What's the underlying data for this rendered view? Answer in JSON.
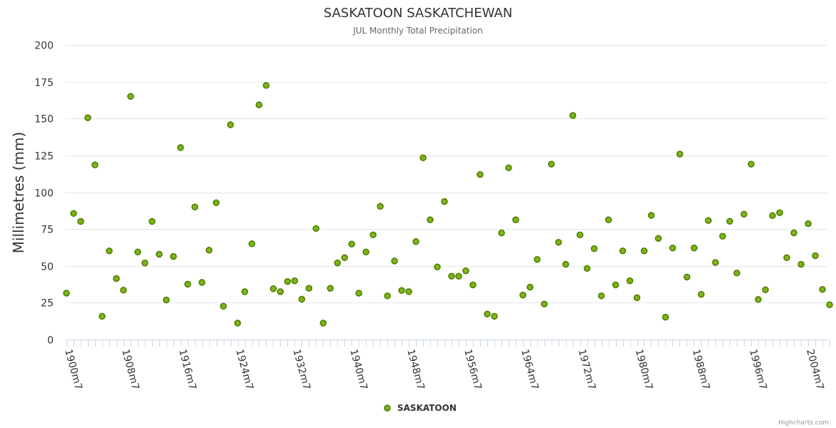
{
  "chart_data": {
    "type": "scatter",
    "title": "SASKATOON SASKATCHEWAN",
    "subtitle": "JUL Monthly Total Precipitation",
    "ylabel": "Millimetres (mm)",
    "xlabel": "",
    "ylim": [
      0,
      200
    ],
    "yticks": [
      0,
      25,
      50,
      75,
      100,
      125,
      150,
      175,
      200
    ],
    "xticks": [
      {
        "year": 1900,
        "label": "1900m7"
      },
      {
        "year": 1908,
        "label": "1908m7"
      },
      {
        "year": 1916,
        "label": "1916m7"
      },
      {
        "year": 1924,
        "label": "1924m7"
      },
      {
        "year": 1932,
        "label": "1932m7"
      },
      {
        "year": 1940,
        "label": "1940m7"
      },
      {
        "year": 1948,
        "label": "1948m7"
      },
      {
        "year": 1956,
        "label": "1956m7"
      },
      {
        "year": 1964,
        "label": "1964m7"
      },
      {
        "year": 1972,
        "label": "1972m7"
      },
      {
        "year": 1980,
        "label": "1980m7"
      },
      {
        "year": 1988,
        "label": "1988m7"
      },
      {
        "year": 1996,
        "label": "1996m7"
      },
      {
        "year": 2004,
        "label": "2004m7"
      }
    ],
    "xrange": [
      1899.8,
      2006.8
    ],
    "grid": true,
    "legend_position": "bottom-center",
    "colors": {
      "marker_fill": "#7cb518",
      "marker_stroke": "#4e7a00",
      "grid": "#e6e6e6",
      "axis": "#ccd6eb"
    },
    "series": [
      {
        "name": "SASKATOON",
        "points": [
          {
            "x": 1900,
            "y": 31.5
          },
          {
            "x": 1901,
            "y": 85.6
          },
          {
            "x": 1902,
            "y": 80.2
          },
          {
            "x": 1903,
            "y": 150.6
          },
          {
            "x": 1904,
            "y": 118.6
          },
          {
            "x": 1905,
            "y": 15.8
          },
          {
            "x": 1906,
            "y": 60.2
          },
          {
            "x": 1907,
            "y": 41.4
          },
          {
            "x": 1908,
            "y": 33.5
          },
          {
            "x": 1909,
            "y": 165.1
          },
          {
            "x": 1910,
            "y": 59.4
          },
          {
            "x": 1911,
            "y": 52.0
          },
          {
            "x": 1912,
            "y": 80.2
          },
          {
            "x": 1913,
            "y": 57.9
          },
          {
            "x": 1914,
            "y": 26.9
          },
          {
            "x": 1915,
            "y": 56.4
          },
          {
            "x": 1916,
            "y": 130.3
          },
          {
            "x": 1917,
            "y": 37.6
          },
          {
            "x": 1918,
            "y": 90.0
          },
          {
            "x": 1919,
            "y": 38.8
          },
          {
            "x": 1920,
            "y": 60.7
          },
          {
            "x": 1921,
            "y": 92.9
          },
          {
            "x": 1922,
            "y": 22.6
          },
          {
            "x": 1923,
            "y": 145.8
          },
          {
            "x": 1924,
            "y": 11.2
          },
          {
            "x": 1925,
            "y": 32.5
          },
          {
            "x": 1926,
            "y": 65.0
          },
          {
            "x": 1927,
            "y": 159.3
          },
          {
            "x": 1928,
            "y": 172.5
          },
          {
            "x": 1929,
            "y": 34.5
          },
          {
            "x": 1930,
            "y": 32.5
          },
          {
            "x": 1931,
            "y": 39.4
          },
          {
            "x": 1932,
            "y": 39.9
          },
          {
            "x": 1933,
            "y": 27.4
          },
          {
            "x": 1934,
            "y": 34.8
          },
          {
            "x": 1935,
            "y": 75.4
          },
          {
            "x": 1936,
            "y": 11.2
          },
          {
            "x": 1937,
            "y": 34.8
          },
          {
            "x": 1938,
            "y": 52.0
          },
          {
            "x": 1939,
            "y": 55.6
          },
          {
            "x": 1940,
            "y": 64.8
          },
          {
            "x": 1941,
            "y": 31.5
          },
          {
            "x": 1942,
            "y": 59.4
          },
          {
            "x": 1943,
            "y": 71.1
          },
          {
            "x": 1944,
            "y": 90.4
          },
          {
            "x": 1945,
            "y": 29.7
          },
          {
            "x": 1946,
            "y": 53.3
          },
          {
            "x": 1947,
            "y": 33.3
          },
          {
            "x": 1948,
            "y": 32.5
          },
          {
            "x": 1949,
            "y": 66.5
          },
          {
            "x": 1950,
            "y": 123.4
          },
          {
            "x": 1951,
            "y": 81.3
          },
          {
            "x": 1952,
            "y": 49.3
          },
          {
            "x": 1953,
            "y": 93.7
          },
          {
            "x": 1954,
            "y": 43.0
          },
          {
            "x": 1955,
            "y": 43.0
          },
          {
            "x": 1956,
            "y": 46.7
          },
          {
            "x": 1957,
            "y": 37.1
          },
          {
            "x": 1958,
            "y": 112.0
          },
          {
            "x": 1959,
            "y": 17.3
          },
          {
            "x": 1960,
            "y": 15.8
          },
          {
            "x": 1961,
            "y": 72.4
          },
          {
            "x": 1962,
            "y": 116.6
          },
          {
            "x": 1963,
            "y": 81.3
          },
          {
            "x": 1964,
            "y": 30.2
          },
          {
            "x": 1965,
            "y": 35.6
          },
          {
            "x": 1966,
            "y": 54.4
          },
          {
            "x": 1967,
            "y": 24.1
          },
          {
            "x": 1968,
            "y": 119.1
          },
          {
            "x": 1969,
            "y": 66.0
          },
          {
            "x": 1970,
            "y": 51.1
          },
          {
            "x": 1971,
            "y": 152.1
          },
          {
            "x": 1972,
            "y": 71.1
          },
          {
            "x": 1973,
            "y": 48.3
          },
          {
            "x": 1974,
            "y": 61.7
          },
          {
            "x": 1975,
            "y": 29.7
          },
          {
            "x": 1976,
            "y": 81.3
          },
          {
            "x": 1977,
            "y": 37.1
          },
          {
            "x": 1978,
            "y": 60.2
          },
          {
            "x": 1979,
            "y": 39.9
          },
          {
            "x": 1980,
            "y": 28.4
          },
          {
            "x": 1981,
            "y": 60.2
          },
          {
            "x": 1982,
            "y": 84.3
          },
          {
            "x": 1983,
            "y": 68.6
          },
          {
            "x": 1984,
            "y": 15.2
          },
          {
            "x": 1985,
            "y": 62.2
          },
          {
            "x": 1986,
            "y": 125.9
          },
          {
            "x": 1987,
            "y": 42.4
          },
          {
            "x": 1988,
            "y": 62.2
          },
          {
            "x": 1989,
            "y": 30.7
          },
          {
            "x": 1990,
            "y": 80.8
          },
          {
            "x": 1991,
            "y": 52.3
          },
          {
            "x": 1992,
            "y": 70.1
          },
          {
            "x": 1993,
            "y": 80.3
          },
          {
            "x": 1994,
            "y": 45.2
          },
          {
            "x": 1995,
            "y": 85.1
          },
          {
            "x": 1996,
            "y": 119.1
          },
          {
            "x": 1997,
            "y": 27.2
          },
          {
            "x": 1998,
            "y": 33.8
          },
          {
            "x": 1999,
            "y": 84.1
          },
          {
            "x": 2000,
            "y": 86.1
          },
          {
            "x": 2001,
            "y": 55.6
          },
          {
            "x": 2002,
            "y": 72.4
          },
          {
            "x": 2003,
            "y": 51.1
          },
          {
            "x": 2004,
            "y": 78.7
          },
          {
            "x": 2005,
            "y": 56.9
          },
          {
            "x": 2006,
            "y": 34.0
          },
          {
            "x": 2007,
            "y": 23.6
          }
        ]
      }
    ]
  },
  "credits": "Highcharts.com"
}
